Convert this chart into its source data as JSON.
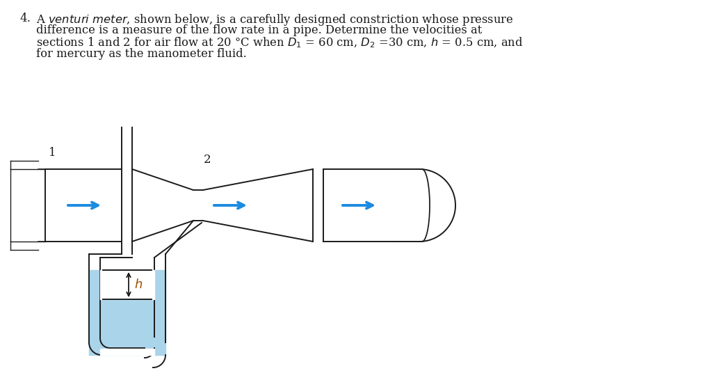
{
  "bg_color": "#ffffff",
  "pipe_color": "#1a1a1a",
  "arrow_color": "#1b8be0",
  "fluid_color": "#aad4ea",
  "text_color": "#1a1a1a",
  "label1": "1",
  "label2": "2",
  "label_h": "h"
}
